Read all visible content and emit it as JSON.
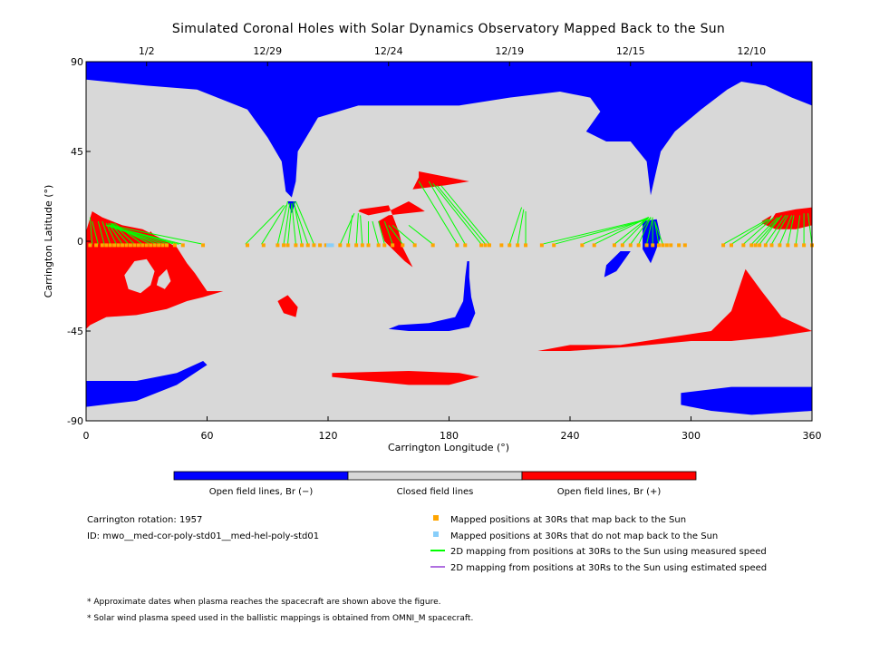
{
  "chart_data": {
    "type": "map",
    "title": "Simulated Coronal Holes with Solar Dynamics Observatory Mapped Back to the Sun",
    "xlabel": "Carrington Longitude (°)",
    "ylabel": "Carrington Latitude (°)",
    "xlim": [
      0,
      360
    ],
    "ylim": [
      -90,
      90
    ],
    "x_ticks": [
      0,
      60,
      120,
      180,
      240,
      300,
      360
    ],
    "y_ticks": [
      {
        "value": 90,
        "label": "90"
      },
      {
        "value": 45,
        "label": "45"
      },
      {
        "value": 0,
        "label": "0"
      },
      {
        "value": -45,
        "label": "-45"
      },
      {
        "value": -90,
        "label": "-90"
      }
    ],
    "date_ticks": [
      {
        "label": "1/2",
        "lon": 30
      },
      {
        "label": "12/29",
        "lon": 90
      },
      {
        "label": "12/24",
        "lon": 150
      },
      {
        "label": "12/19",
        "lon": 210
      },
      {
        "label": "12/15",
        "lon": 270
      },
      {
        "label": "12/10",
        "lon": 330
      }
    ],
    "colorbar": {
      "segments": [
        {
          "label": "Open field lines, Br (−)",
          "color": "#0000ff"
        },
        {
          "label": "Closed field lines",
          "color": "#d8d8d8"
        },
        {
          "label": "Open field lines, Br (+)",
          "color": "#ff0000"
        }
      ]
    },
    "colors": {
      "negative": "#0000ff",
      "closed": "#d8d8d8",
      "positive": "#ff0000",
      "mapped": "#ffa500",
      "unmapped": "#87cefa",
      "measured_line": "#00ff00",
      "estimated_line": "#b070e0"
    },
    "regions_negative": [
      [
        [
          0,
          90
        ],
        [
          360,
          90
        ],
        [
          360,
          68
        ],
        [
          350,
          72
        ],
        [
          337,
          78
        ],
        [
          325,
          80
        ],
        [
          318,
          76
        ],
        [
          305,
          66
        ],
        [
          292,
          55
        ],
        [
          285,
          45
        ],
        [
          282,
          32
        ],
        [
          280,
          23
        ],
        [
          278,
          40
        ],
        [
          270,
          50
        ],
        [
          258,
          50
        ],
        [
          248,
          55
        ],
        [
          255,
          65
        ],
        [
          250,
          72
        ],
        [
          235,
          75
        ],
        [
          210,
          72
        ],
        [
          185,
          68
        ],
        [
          160,
          68
        ],
        [
          135,
          68
        ],
        [
          115,
          62
        ],
        [
          105,
          45
        ],
        [
          104,
          30
        ],
        [
          102,
          22
        ],
        [
          99,
          25
        ],
        [
          97,
          40
        ],
        [
          90,
          52
        ],
        [
          80,
          66
        ],
        [
          55,
          76
        ],
        [
          30,
          78
        ],
        [
          10,
          80
        ],
        [
          0,
          81
        ]
      ],
      [
        [
          0,
          -70
        ],
        [
          25,
          -70
        ],
        [
          45,
          -66
        ],
        [
          58,
          -60
        ],
        [
          60,
          -62
        ],
        [
          45,
          -72
        ],
        [
          25,
          -80
        ],
        [
          0,
          -83
        ]
      ],
      [
        [
          295,
          -76
        ],
        [
          320,
          -73
        ],
        [
          345,
          -73
        ],
        [
          360,
          -73
        ],
        [
          360,
          -85
        ],
        [
          330,
          -87
        ],
        [
          310,
          -85
        ],
        [
          295,
          -82
        ]
      ],
      [
        [
          189,
          -10
        ],
        [
          190,
          -10
        ],
        [
          190,
          -18
        ],
        [
          191,
          -28
        ],
        [
          193,
          -36
        ],
        [
          190,
          -43
        ],
        [
          180,
          -45
        ],
        [
          160,
          -45
        ],
        [
          150,
          -44
        ],
        [
          155,
          -42
        ],
        [
          170,
          -41
        ],
        [
          183,
          -38
        ],
        [
          187,
          -30
        ],
        [
          188,
          -18
        ]
      ],
      [
        [
          265,
          -5
        ],
        [
          270,
          -5
        ],
        [
          263,
          -15
        ],
        [
          257,
          -18
        ],
        [
          258,
          -12
        ]
      ],
      [
        [
          276,
          10
        ],
        [
          283,
          11
        ],
        [
          285,
          2
        ],
        [
          282,
          -6
        ],
        [
          280,
          -11
        ],
        [
          276,
          -4
        ]
      ],
      [
        [
          100,
          20
        ],
        [
          104,
          20
        ],
        [
          102,
          14
        ]
      ]
    ],
    "regions_positive": [
      [
        [
          3,
          15
        ],
        [
          8,
          12
        ],
        [
          18,
          8
        ],
        [
          28,
          6
        ],
        [
          36,
          2
        ],
        [
          45,
          -3
        ],
        [
          50,
          -11
        ],
        [
          54,
          -16
        ],
        [
          60,
          -25
        ],
        [
          68,
          -25
        ],
        [
          58,
          -28
        ],
        [
          50,
          -30
        ],
        [
          40,
          -34
        ],
        [
          25,
          -37
        ],
        [
          10,
          -38
        ],
        [
          2,
          -42
        ],
        [
          0,
          -44
        ],
        [
          0,
          5
        ]
      ],
      [
        [
          135,
          15
        ],
        [
          140,
          13
        ],
        [
          150,
          15
        ],
        [
          160,
          20
        ],
        [
          165,
          17
        ],
        [
          168,
          15
        ],
        [
          150,
          13
        ],
        [
          145,
          10
        ],
        [
          148,
          0
        ],
        [
          158,
          -10
        ],
        [
          162,
          -13
        ],
        [
          157,
          -3
        ],
        [
          155,
          5
        ],
        [
          152,
          13
        ],
        [
          150,
          18
        ],
        [
          143,
          17
        ],
        [
          136,
          16
        ]
      ],
      [
        [
          165,
          35
        ],
        [
          190,
          30
        ],
        [
          178,
          28
        ],
        [
          162,
          26
        ],
        [
          165,
          32
        ]
      ],
      [
        [
          342,
          14
        ],
        [
          352,
          16
        ],
        [
          360,
          17
        ],
        [
          360,
          8
        ],
        [
          352,
          6
        ],
        [
          342,
          6
        ],
        [
          335,
          9
        ],
        [
          340,
          11
        ]
      ],
      [
        [
          335,
          10
        ],
        [
          340,
          13
        ],
        [
          338,
          8
        ]
      ],
      [
        [
          224,
          -55
        ],
        [
          240,
          -52
        ],
        [
          265,
          -52
        ],
        [
          290,
          -48
        ],
        [
          310,
          -45
        ],
        [
          320,
          -35
        ],
        [
          325,
          -20
        ],
        [
          327,
          -14
        ],
        [
          335,
          -25
        ],
        [
          345,
          -38
        ],
        [
          360,
          -45
        ],
        [
          340,
          -48
        ],
        [
          320,
          -50
        ],
        [
          300,
          -50
        ],
        [
          268,
          -53
        ],
        [
          240,
          -55
        ]
      ],
      [
        [
          122,
          -66
        ],
        [
          160,
          -65
        ],
        [
          185,
          -66
        ],
        [
          195,
          -68
        ],
        [
          180,
          -72
        ],
        [
          160,
          -72
        ],
        [
          140,
          -70
        ],
        [
          122,
          -68
        ]
      ],
      [
        [
          95,
          -30
        ],
        [
          100,
          -27
        ],
        [
          105,
          -33
        ],
        [
          104,
          -38
        ],
        [
          98,
          -36
        ]
      ],
      [
        [
          32,
          5
        ],
        [
          36,
          0
        ],
        [
          34,
          -2
        ],
        [
          30,
          2
        ]
      ]
    ],
    "closed_islands": [
      [
        [
          24,
          -10
        ],
        [
          30,
          -9
        ],
        [
          34,
          -15
        ],
        [
          32,
          -22
        ],
        [
          27,
          -26
        ],
        [
          21,
          -24
        ],
        [
          19,
          -17
        ]
      ],
      [
        [
          36,
          -18
        ],
        [
          40,
          -14
        ],
        [
          42,
          -20
        ],
        [
          39,
          -24
        ],
        [
          35,
          -22
        ]
      ]
    ],
    "mapped_points_lon": [
      2,
      5,
      8,
      10,
      12,
      14,
      16,
      18,
      20,
      22,
      24,
      26,
      28,
      30,
      32,
      34,
      36,
      38,
      40,
      44,
      48,
      58,
      80,
      88,
      95,
      98,
      100,
      104,
      107,
      110,
      113,
      116,
      119,
      126,
      130,
      134,
      137,
      140,
      145,
      148,
      152,
      157,
      163,
      172,
      184,
      188,
      196,
      198,
      200,
      206,
      210,
      214,
      218,
      226,
      232,
      246,
      252,
      262,
      266,
      270,
      274,
      278,
      281,
      284,
      286,
      288,
      290,
      294,
      297,
      316,
      320,
      326,
      330,
      332,
      334,
      337,
      340,
      344,
      348,
      352,
      356,
      360
    ],
    "unmapped_points_lon": [
      120,
      121,
      122
    ],
    "mapping_lines": [
      [
        3,
        0,
        2,
        12
      ],
      [
        6,
        0,
        3,
        10
      ],
      [
        9,
        0,
        6,
        10
      ],
      [
        12,
        0,
        8,
        10
      ],
      [
        15,
        0,
        10,
        9
      ],
      [
        18,
        0,
        11,
        9
      ],
      [
        21,
        0,
        12,
        9
      ],
      [
        24,
        0,
        13,
        9
      ],
      [
        28,
        0,
        14,
        9
      ],
      [
        32,
        0,
        12,
        9
      ],
      [
        35,
        0,
        12,
        8
      ],
      [
        38,
        0,
        10,
        8
      ],
      [
        41,
        0,
        10,
        8
      ],
      [
        44,
        0,
        11,
        8
      ],
      [
        46,
        0,
        10,
        8
      ],
      [
        48,
        0,
        10,
        8
      ],
      [
        58,
        0,
        12,
        8
      ],
      [
        79,
        0,
        98,
        18
      ],
      [
        87,
        0,
        99,
        18
      ],
      [
        95,
        0,
        100,
        20
      ],
      [
        98,
        0,
        101,
        19
      ],
      [
        100,
        0,
        102,
        19
      ],
      [
        104,
        0,
        102,
        19
      ],
      [
        107,
        0,
        103,
        20
      ],
      [
        110,
        0,
        103,
        19
      ],
      [
        113,
        0,
        104,
        20
      ],
      [
        126,
        0,
        133,
        14
      ],
      [
        130,
        0,
        132,
        13
      ],
      [
        134,
        0,
        135,
        14
      ],
      [
        137,
        0,
        136,
        13
      ],
      [
        140,
        0,
        140,
        10
      ],
      [
        145,
        0,
        142,
        10
      ],
      [
        148,
        0,
        145,
        10
      ],
      [
        152,
        0,
        148,
        10
      ],
      [
        157,
        0,
        150,
        8
      ],
      [
        163,
        0,
        152,
        8
      ],
      [
        172,
        0,
        160,
        8
      ],
      [
        184,
        0,
        165,
        30
      ],
      [
        188,
        0,
        170,
        30
      ],
      [
        196,
        0,
        172,
        29
      ],
      [
        198,
        0,
        174,
        28
      ],
      [
        200,
        0,
        176,
        28
      ],
      [
        210,
        0,
        216,
        17
      ],
      [
        214,
        0,
        217,
        16
      ],
      [
        218,
        0,
        218,
        15
      ],
      [
        226,
        0,
        278,
        11
      ],
      [
        232,
        0,
        279,
        11
      ],
      [
        246,
        0,
        279,
        12
      ],
      [
        252,
        0,
        279,
        12
      ],
      [
        262,
        0,
        279,
        12
      ],
      [
        266,
        0,
        279,
        12
      ],
      [
        270,
        0,
        280,
        12
      ],
      [
        274,
        0,
        280,
        12
      ],
      [
        278,
        0,
        281,
        12
      ],
      [
        281,
        0,
        281,
        11
      ],
      [
        284,
        0,
        282,
        10
      ],
      [
        286,
        0,
        282,
        10
      ],
      [
        316,
        0,
        338,
        11
      ],
      [
        320,
        0,
        339,
        11
      ],
      [
        326,
        0,
        341,
        12
      ],
      [
        330,
        0,
        343,
        12
      ],
      [
        332,
        0,
        344,
        12
      ],
      [
        334,
        0,
        345,
        13
      ],
      [
        337,
        0,
        347,
        13
      ],
      [
        340,
        0,
        348,
        13
      ],
      [
        344,
        0,
        350,
        13
      ],
      [
        348,
        0,
        351,
        13
      ],
      [
        352,
        0,
        354,
        13
      ],
      [
        356,
        0,
        356,
        14
      ],
      [
        360,
        0,
        358,
        14
      ]
    ]
  },
  "colorbar_labels": {
    "negative": "Open field lines, Br (−)",
    "closed": "Closed field lines",
    "positive": "Open field lines, Br (+)"
  },
  "info": {
    "rotation": "Carrington rotation: 1957",
    "id": "ID: mwo__med-cor-poly-std01__med-hel-poly-std01"
  },
  "legend": [
    {
      "kind": "square",
      "color": "#ffa500",
      "label": "Mapped positions at 30Rs that map back to the Sun"
    },
    {
      "kind": "square",
      "color": "#87cefa",
      "label": "Mapped positions at 30Rs that do not map back to the Sun"
    },
    {
      "kind": "line",
      "color": "#00ff00",
      "label": "2D mapping from positions at 30Rs to the Sun using measured speed"
    },
    {
      "kind": "line",
      "color": "#b070e0",
      "label": "2D mapping from positions at 30Rs to the Sun using estimated speed"
    }
  ],
  "footnotes": [
    "* Approximate dates when plasma reaches the spacecraft are shown above the figure.",
    "* Solar wind plasma speed used in the ballistic mappings is obtained from OMNI_M spacecraft."
  ]
}
